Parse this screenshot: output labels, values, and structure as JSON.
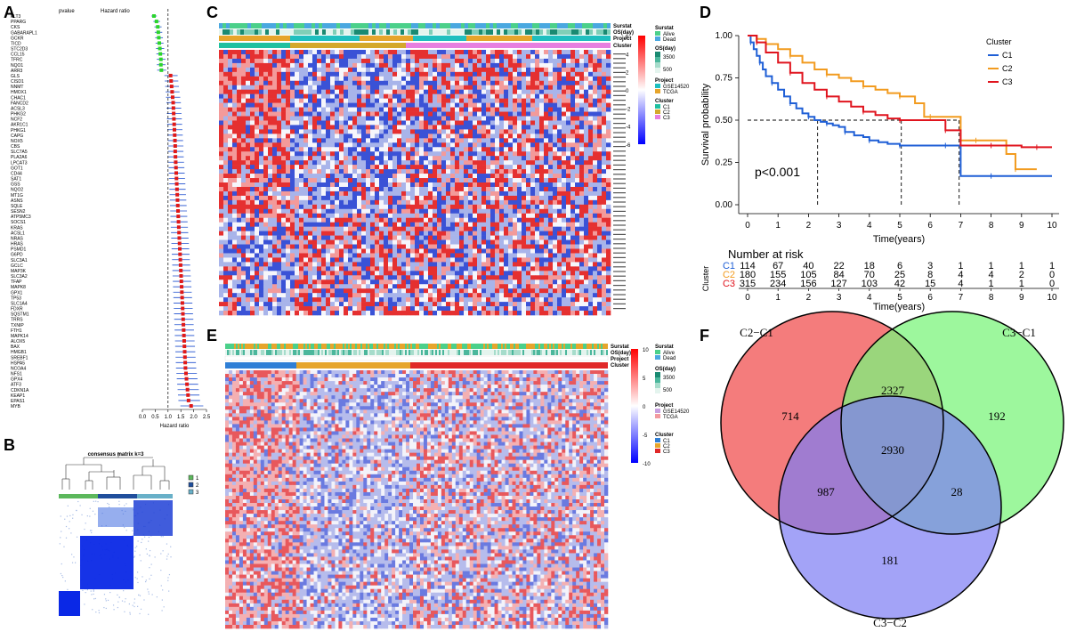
{
  "panels": {
    "A": "A",
    "B": "B",
    "C": "C",
    "D": "D",
    "E": "E",
    "F": "F"
  },
  "panel_a": {
    "col_headers": [
      "pvalue",
      "Hazard ratio"
    ],
    "genes": [
      "FLT3",
      "PPARG",
      "CKS",
      "GABARAPL1",
      "GCKR",
      "TICD",
      "STC2D3",
      "CCL15",
      "TFRC",
      "NQO1",
      "ARR3",
      "GLS",
      "CISD1",
      "NNMT",
      "HMOX1",
      "CHAC1",
      "FANCD2",
      "ACSL3",
      "PHKG2",
      "NCF2",
      "AKR1C1",
      "PHKG1",
      "CAPG",
      "NOX5",
      "CBS",
      "SLC7A5",
      "PLA2A6",
      "LPCAT3",
      "GOT1",
      "CD44",
      "SAT1",
      "GSS",
      "NQO2",
      "MT1G",
      "ASNS",
      "SQLE",
      "SESN2",
      "ATP5MC3",
      "SOCS1",
      "KRAS",
      "ACSL1",
      "NRAS",
      "HRAS",
      "PSMD1",
      "G6PD",
      "SLC3A1",
      "GCLC",
      "MAP3K",
      "SLC3A2",
      "TFAP",
      "MAPK8",
      "GPX1",
      "TP53",
      "SLC1A4",
      "FDXR",
      "SQSTM1",
      "TRRS",
      "TXNIP",
      "FTH1",
      "MAPK14",
      "ALOX5",
      "BAX",
      "HMGB1",
      "SREBF1",
      "HSPA5",
      "NCOA4",
      "NFS1",
      "GPX4",
      "ATF3",
      "CDKN1A",
      "KEAP1",
      "EPAS1",
      "MYB"
    ],
    "hr": [
      0.45,
      0.55,
      0.6,
      0.62,
      0.64,
      0.66,
      0.68,
      0.7,
      0.72,
      0.72,
      0.74,
      1.1,
      1.12,
      1.14,
      1.16,
      1.18,
      1.2,
      1.21,
      1.22,
      1.23,
      1.24,
      1.25,
      1.26,
      1.27,
      1.28,
      1.28,
      1.29,
      1.3,
      1.31,
      1.32,
      1.33,
      1.34,
      1.35,
      1.36,
      1.37,
      1.38,
      1.39,
      1.4,
      1.41,
      1.42,
      1.43,
      1.44,
      1.45,
      1.46,
      1.47,
      1.48,
      1.49,
      1.5,
      1.51,
      1.52,
      1.53,
      1.54,
      1.55,
      1.56,
      1.57,
      1.58,
      1.59,
      1.6,
      1.61,
      1.62,
      1.63,
      1.64,
      1.65,
      1.66,
      1.67,
      1.68,
      1.7,
      1.72,
      1.74,
      1.76,
      1.78,
      1.8,
      1.9
    ],
    "xlabel": "Hazard ratio",
    "xticks": [
      "0.0",
      "0.5",
      "1.0",
      "1.5",
      "2.0",
      "2.5"
    ]
  },
  "panel_b": {
    "title": "consensus matrix k=3",
    "legend": [
      "1",
      "2",
      "3"
    ],
    "colors": [
      "#5cb85c",
      "#1f4e9c",
      "#68b0c8"
    ]
  },
  "panel_c": {
    "row_labels": [
      "Surstat",
      "OS(day)",
      "Project",
      "Cluster"
    ],
    "legend_surstat": {
      "title": "Surstat",
      "items": [
        "Alive",
        "Dead"
      ]
    },
    "legend_os": {
      "title": "OS(day)",
      "items": [
        "3500",
        "500"
      ]
    },
    "legend_project": {
      "title": "Project",
      "items": [
        "GSE14520",
        "TCGA"
      ]
    },
    "legend_cluster": {
      "title": "Cluster",
      "items": [
        "C1",
        "C2",
        "C3"
      ]
    },
    "scale_ticks": [
      "6",
      "4",
      "2",
      "0",
      "-2",
      "-4",
      "-6"
    ]
  },
  "panel_e": {
    "row_labels": [
      "Surstat",
      "OS(day)",
      "Project",
      "Cluster"
    ],
    "legend_surstat": {
      "title": "Surstat",
      "items": [
        "Alive",
        "Dead"
      ]
    },
    "legend_os": {
      "title": "OS(day)",
      "items": [
        "3500",
        "500"
      ]
    },
    "legend_project": {
      "title": "Project",
      "items": [
        "GSE14520",
        "TCGA"
      ]
    },
    "legend_cluster": {
      "title": "Cluster",
      "items": [
        "C1",
        "C2",
        "C3"
      ]
    },
    "scale_ticks": [
      "10",
      "5",
      "0",
      "-5",
      "-10"
    ]
  },
  "chart_data": {
    "type": "line",
    "title": "",
    "xlabel": "Time(years)",
    "ylabel": "Survival probability",
    "xlim": [
      0,
      10
    ],
    "ylim": [
      0,
      1
    ],
    "xticks": [
      "0",
      "1",
      "2",
      "3",
      "4",
      "5",
      "6",
      "7",
      "8",
      "9",
      "10"
    ],
    "yticks": [
      "0.00",
      "0.25",
      "0.50",
      "0.75",
      "1.00"
    ],
    "legend_title": "Cluster",
    "pvalue": "p<0.001",
    "median_lines": [
      2.3,
      5.05,
      6.95
    ],
    "series": [
      {
        "name": "C1",
        "color": "#1f5fd6",
        "x": [
          0,
          0.1,
          0.2,
          0.3,
          0.4,
          0.5,
          0.6,
          0.8,
          1.0,
          1.2,
          1.4,
          1.6,
          1.8,
          2.0,
          2.2,
          2.4,
          2.6,
          2.8,
          3.0,
          3.2,
          3.5,
          3.8,
          4.0,
          4.3,
          4.6,
          5.0,
          5.5,
          6.0,
          6.5,
          6.9,
          7.0,
          8.0,
          9.0,
          10.0
        ],
        "y": [
          1.0,
          0.96,
          0.92,
          0.88,
          0.84,
          0.8,
          0.76,
          0.72,
          0.68,
          0.64,
          0.6,
          0.57,
          0.54,
          0.52,
          0.5,
          0.49,
          0.48,
          0.47,
          0.46,
          0.43,
          0.41,
          0.4,
          0.38,
          0.37,
          0.36,
          0.35,
          0.35,
          0.35,
          0.35,
          0.35,
          0.17,
          0.17,
          0.17,
          0.17
        ]
      },
      {
        "name": "C2",
        "color": "#f29b1f",
        "x": [
          0,
          0.3,
          0.6,
          1.0,
          1.4,
          1.8,
          2.2,
          2.6,
          3.0,
          3.4,
          3.8,
          4.2,
          4.6,
          5.0,
          5.5,
          5.8,
          6.0,
          6.6,
          7.0,
          7.5,
          8.0,
          8.5,
          8.8,
          9.0,
          9.5
        ],
        "y": [
          1.0,
          0.98,
          0.95,
          0.92,
          0.88,
          0.84,
          0.8,
          0.77,
          0.75,
          0.73,
          0.7,
          0.68,
          0.66,
          0.64,
          0.6,
          0.52,
          0.52,
          0.52,
          0.38,
          0.38,
          0.38,
          0.3,
          0.21,
          0.21,
          0.21
        ]
      },
      {
        "name": "C3",
        "color": "#e0141e",
        "x": [
          0,
          0.3,
          0.6,
          1.0,
          1.4,
          1.8,
          2.2,
          2.6,
          3.0,
          3.4,
          3.8,
          4.2,
          4.6,
          5.0,
          5.5,
          6.0,
          6.5,
          7.0,
          7.5,
          8.0,
          8.5,
          9.0,
          9.5,
          10.0
        ],
        "y": [
          1.0,
          0.96,
          0.9,
          0.84,
          0.78,
          0.72,
          0.68,
          0.64,
          0.61,
          0.58,
          0.55,
          0.53,
          0.51,
          0.5,
          0.5,
          0.5,
          0.44,
          0.35,
          0.35,
          0.35,
          0.35,
          0.34,
          0.34,
          0.34
        ]
      }
    ]
  },
  "risk_table": {
    "title": "Number at risk",
    "ylabel": "Cluster",
    "xlabel": "Time(years)",
    "times": [
      "0",
      "1",
      "2",
      "3",
      "4",
      "5",
      "6",
      "7",
      "8",
      "9",
      "10"
    ],
    "rows": [
      {
        "name": "C1",
        "color": "#1f5fd6",
        "values": [
          "114",
          "67",
          "40",
          "22",
          "18",
          "6",
          "3",
          "1",
          "1",
          "1",
          "1"
        ]
      },
      {
        "name": "C2",
        "color": "#f29b1f",
        "values": [
          "180",
          "155",
          "105",
          "84",
          "70",
          "25",
          "8",
          "4",
          "4",
          "2",
          "0"
        ]
      },
      {
        "name": "C3",
        "color": "#e0141e",
        "values": [
          "315",
          "234",
          "156",
          "127",
          "103",
          "42",
          "15",
          "4",
          "1",
          "1",
          "0"
        ]
      }
    ]
  },
  "venn": {
    "sets": [
      {
        "label": "C2−C1",
        "color": "#f47c7c"
      },
      {
        "label": "C3−C1",
        "color": "#7cf47c"
      },
      {
        "label": "C3−C2",
        "color": "#7c7cf4"
      }
    ],
    "regions": {
      "only_a": "714",
      "ab": "2327",
      "only_b": "192",
      "abc": "2930",
      "ac": "987",
      "bc": "28",
      "only_c": "181"
    }
  }
}
